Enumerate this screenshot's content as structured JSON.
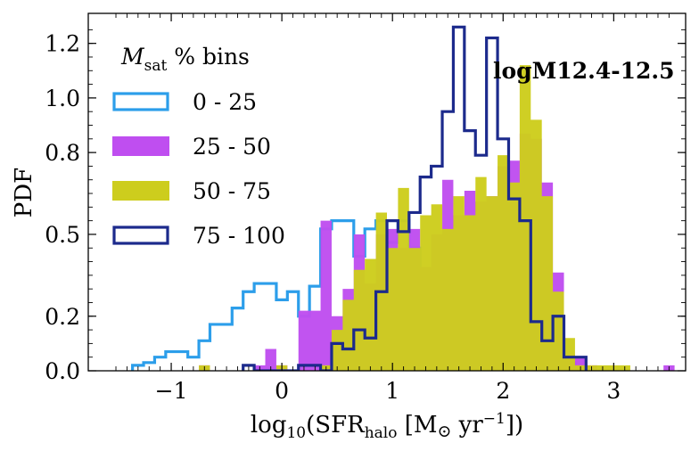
{
  "chart_data": {
    "type": "histogram",
    "xlabel_parts": {
      "pre": "log",
      "sub10": "10",
      "paren": "(SFR",
      "sub": "halo",
      "unit_pre": " [M",
      "odot": "⊙",
      "unit_mid": " yr",
      "sup": "−1",
      "unit_post": "])"
    },
    "ylabel": "PDF",
    "xlim": [
      -1.75,
      3.65
    ],
    "ylim": [
      0.0,
      1.31
    ],
    "xticks": [
      -1,
      0,
      1,
      2,
      3
    ],
    "xtick_labels": [
      "−1",
      "0",
      "1",
      "2",
      "3"
    ],
    "yticks": [
      0.0,
      0.2,
      0.5,
      0.8,
      1.0,
      1.2
    ],
    "ytick_labels": [
      "0.0",
      "0.2",
      "0.5",
      "0.8",
      "1.0",
      "1.2"
    ],
    "annotation": "logM12.4-12.5",
    "legend": {
      "title_main": "M",
      "title_sub": "sat",
      "title_rest": " % bins",
      "location": "upper-left",
      "entries": [
        {
          "label": "0 - 25",
          "style": "step",
          "color": "#2c9eea"
        },
        {
          "label": "25 - 50",
          "style": "filled",
          "color": "#bf4ef0"
        },
        {
          "label": "50 - 75",
          "style": "filled",
          "color": "#cdcd1d"
        },
        {
          "label": "75 - 100",
          "style": "step",
          "color": "#1c2a8c"
        }
      ]
    },
    "series": [
      {
        "name": "0 - 25",
        "style": "step",
        "color": "#2c9eea",
        "x0": -1.35,
        "dx": 0.1,
        "values": [
          0.02,
          0.03,
          0.05,
          0.07,
          0.07,
          0.05,
          0.11,
          0.17,
          0.17,
          0.23,
          0.29,
          0.32,
          0.32,
          0.26,
          0.29,
          0.2,
          0.31,
          0.52,
          0.55,
          0.55,
          0.42,
          0.52,
          0.55,
          0.47,
          0.55,
          0.45,
          0.29,
          0.29,
          0.32,
          0.35,
          0.29,
          0.35,
          0.29,
          0.28,
          0.35,
          0.35,
          0.2,
          0.08,
          0.11,
          0.03
        ]
      },
      {
        "name": "25 - 50",
        "style": "filled",
        "color": "#bf4ef0",
        "x0": -0.75,
        "dx": 0.1,
        "values": [
          0.02,
          0.0,
          0.0,
          0.0,
          0.0,
          0.02,
          0.08,
          0.02,
          0.0,
          0.22,
          0.22,
          0.55,
          0.2,
          0.3,
          0.5,
          0.32,
          0.5,
          0.52,
          0.45,
          0.52,
          0.38,
          0.5,
          0.7,
          0.57,
          0.66,
          0.62,
          0.64,
          0.75,
          0.77,
          0.87,
          0.85,
          0.69,
          0.36,
          0.06,
          0.05,
          0.02,
          0.0,
          0.0,
          0.0,
          0.0,
          0.0,
          0.0,
          0.02
        ]
      },
      {
        "name": "50 - 75",
        "style": "filled",
        "color": "#cdcd1d",
        "x0": -0.75,
        "dx": 0.1,
        "values": [
          0.02,
          0.0,
          0.0,
          0.0,
          0.0,
          0.0,
          0.0,
          0.02,
          0.0,
          0.0,
          0.0,
          0.02,
          0.15,
          0.26,
          0.37,
          0.41,
          0.58,
          0.45,
          0.67,
          0.45,
          0.57,
          0.61,
          0.52,
          0.64,
          0.57,
          0.71,
          0.64,
          0.79,
          0.69,
          1.12,
          0.92,
          0.64,
          0.29,
          0.12,
          0.02,
          0.02,
          0.02,
          0.02,
          0.02
        ]
      },
      {
        "name": "75 - 100",
        "style": "step",
        "color": "#1c2a8c",
        "x0": -0.35,
        "dx": 0.1,
        "values": [
          0.02,
          0.0,
          0.0,
          0.0,
          0.0,
          0.02,
          0.02,
          0.0,
          0.1,
          0.08,
          0.15,
          0.12,
          0.29,
          0.55,
          0.51,
          0.58,
          0.71,
          0.75,
          0.95,
          1.26,
          0.88,
          0.79,
          1.22,
          0.85,
          0.63,
          0.55,
          0.18,
          0.11,
          0.2,
          0.05,
          0.05
        ]
      }
    ]
  }
}
